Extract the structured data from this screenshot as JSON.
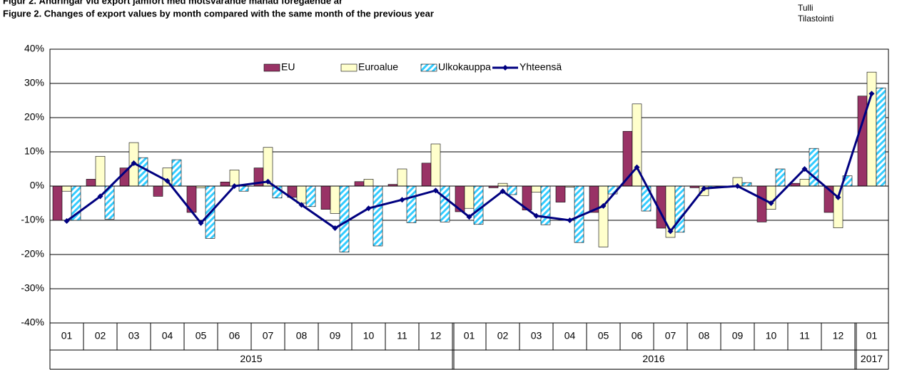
{
  "chart_data": {
    "type": "bar",
    "title": "Figur  2. Ändringar vid export jämfört med motsvarande månad föregående år",
    "subtitle": "Figure  2. Changes of export values by month compared with the same month of the previous year",
    "source": [
      "Tulli",
      "Tilastointi"
    ],
    "categories": [
      "01",
      "02",
      "03",
      "04",
      "05",
      "06",
      "07",
      "08",
      "09",
      "10",
      "11",
      "12",
      "01",
      "02",
      "03",
      "04",
      "05",
      "06",
      "07",
      "08",
      "09",
      "10",
      "11",
      "12",
      "01"
    ],
    "years": [
      "2015",
      "2016",
      "2017"
    ],
    "ylim": [
      -40,
      40
    ],
    "yticks": [
      {
        "value": -40,
        "label": "-40%"
      },
      {
        "value": -30,
        "label": "-30%"
      },
      {
        "value": -20,
        "label": "-20%"
      },
      {
        "value": -10,
        "label": "-10%"
      },
      {
        "value": 0,
        "label": "0%"
      },
      {
        "value": 10,
        "label": "10%"
      },
      {
        "value": 20,
        "label": "20%"
      },
      {
        "value": 30,
        "label": "30%"
      },
      {
        "value": 40,
        "label": "40%"
      }
    ],
    "grid": true,
    "series": [
      {
        "name": "EU",
        "type": "bar",
        "color": "#993366",
        "values": [
          -10,
          2,
          5.3,
          -3,
          -7.7,
          1.2,
          5.3,
          -3.3,
          -6.8,
          1.3,
          0.5,
          6.7,
          -7.5,
          -0.5,
          -7,
          -4.7,
          -7.7,
          16,
          -12.3,
          -0.5,
          0,
          -10.5,
          0.8,
          -7.7,
          26.3
        ]
      },
      {
        "name": "Euroalue",
        "type": "bar",
        "color": "#FFFFCC",
        "values": [
          -1.5,
          8.7,
          12.7,
          5.3,
          -0.5,
          4.7,
          11.3,
          -5,
          -8,
          2,
          5,
          12.3,
          -6.5,
          0.8,
          -1.8,
          -0.3,
          -17.8,
          24,
          -15,
          -2.8,
          2.5,
          -6.8,
          2,
          -12.2,
          33.3
        ]
      },
      {
        "name": "Ulkokauppa",
        "type": "bar",
        "color": "#33CCFF",
        "hatch": true,
        "values": [
          -10,
          -9.7,
          8.3,
          7.7,
          -15.3,
          -1.5,
          -3.5,
          -6,
          -19.3,
          -17.5,
          -10.7,
          -10.5,
          -11.2,
          -2.5,
          -11.3,
          -16.5,
          -2.3,
          -7.3,
          -13.5,
          -0.5,
          1,
          5,
          11,
          3,
          28.7
        ]
      },
      {
        "name": "Yhteensä",
        "type": "line",
        "color": "#000080",
        "values": [
          -10.2,
          -3,
          6.7,
          1.5,
          -10.8,
          0,
          1.3,
          -5.5,
          -12.3,
          -6.5,
          -4,
          -1.3,
          -9,
          -1.5,
          -8.7,
          -10,
          -5.8,
          5.5,
          -13.2,
          -0.7,
          0,
          -5,
          5,
          -3.3,
          27
        ]
      }
    ]
  }
}
